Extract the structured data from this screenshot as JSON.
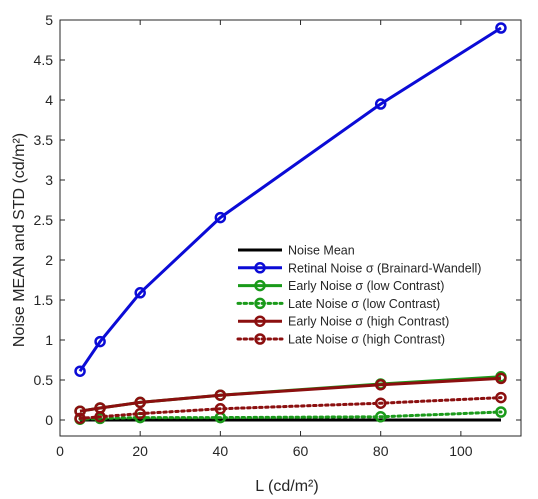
{
  "chart_data": {
    "type": "line",
    "title": "",
    "xlabel": "L (cd/m²)",
    "ylabel": "Noise MEAN and STD (cd/m²)",
    "xlim": [
      0,
      115
    ],
    "ylim": [
      -0.2,
      5
    ],
    "xticks": [
      0,
      20,
      40,
      60,
      80,
      100
    ],
    "yticks": [
      0,
      0.5,
      1,
      1.5,
      2,
      2.5,
      3,
      3.5,
      4,
      4.5,
      5
    ],
    "xtick_labels": [
      "0",
      "20",
      "40",
      "60",
      "80",
      "100"
    ],
    "ytick_labels": [
      "0",
      "0.5",
      "1",
      "1.5",
      "2",
      "2.5",
      "3",
      "3.5",
      "4",
      "4.5",
      "5"
    ],
    "grid": false,
    "legend_position": "right",
    "x": [
      5,
      10,
      20,
      40,
      80,
      110
    ],
    "series": [
      {
        "name": "Noise Mean",
        "color": "#000000",
        "style": "solid",
        "marker": "none",
        "values": [
          0,
          0,
          0,
          0,
          0,
          0
        ]
      },
      {
        "name": "Retinal Noise σ (Brainard-Wandell)",
        "color": "#0b0bd6",
        "style": "solid",
        "marker": "circle",
        "values": [
          0.61,
          0.98,
          1.59,
          2.53,
          3.95,
          4.9
        ]
      },
      {
        "name": "Early Noise σ (low Contrast)",
        "color": "#1a9a1a",
        "style": "solid",
        "marker": "circle",
        "values": [
          0.11,
          0.15,
          0.22,
          0.31,
          0.45,
          0.54
        ]
      },
      {
        "name": "Late Noise σ (low Contrast)",
        "color": "#1a9a1a",
        "style": "dotted",
        "marker": "circle",
        "values": [
          0.01,
          0.02,
          0.03,
          0.03,
          0.04,
          0.1
        ]
      },
      {
        "name": "Early Noise σ (high Contrast)",
        "color": "#8b0f0f",
        "style": "solid",
        "marker": "circle",
        "values": [
          0.11,
          0.15,
          0.22,
          0.31,
          0.44,
          0.52
        ]
      },
      {
        "name": "Late Noise σ (high Contrast)",
        "color": "#8b0f0f",
        "style": "dotted",
        "marker": "circle",
        "values": [
          0.02,
          0.04,
          0.08,
          0.14,
          0.21,
          0.28
        ]
      }
    ]
  }
}
